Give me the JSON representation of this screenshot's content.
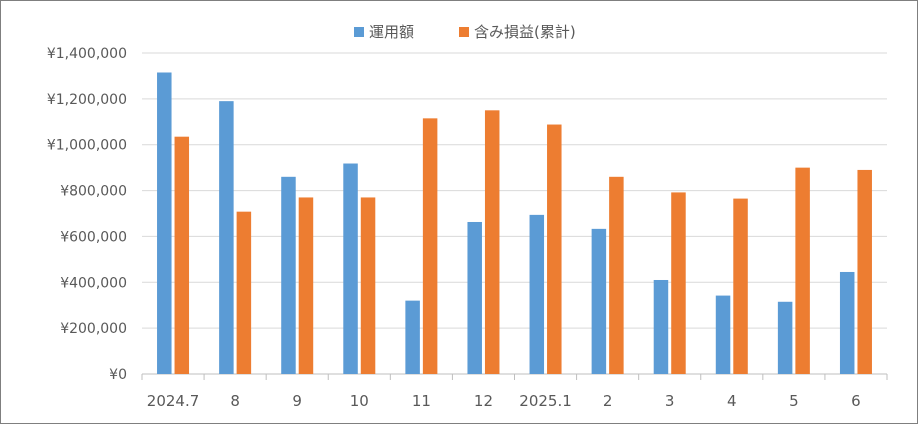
{
  "chart_data": {
    "type": "bar",
    "categories": [
      "2024.7",
      "8",
      "9",
      "10",
      "11",
      "12",
      "2025.1",
      "2",
      "3",
      "4",
      "5",
      "6"
    ],
    "series": [
      {
        "name": "運用額",
        "color": "#5b9bd5",
        "values": [
          1315000,
          1190000,
          860000,
          918000,
          320000,
          663000,
          694000,
          633000,
          410000,
          342000,
          315000,
          445000
        ]
      },
      {
        "name": "含み損益(累計)",
        "color": "#ed7d31",
        "values": [
          1035000,
          708000,
          770000,
          770000,
          1115000,
          1150000,
          1088000,
          860000,
          792000,
          765000,
          900000,
          890000
        ]
      }
    ],
    "yticks": [
      "¥0",
      "¥200,000",
      "¥400,000",
      "¥600,000",
      "¥800,000",
      "¥1,000,000",
      "¥1,200,000",
      "¥1,400,000"
    ],
    "ylim": [
      0,
      1400000
    ],
    "grid": true,
    "legend": "top-center"
  }
}
